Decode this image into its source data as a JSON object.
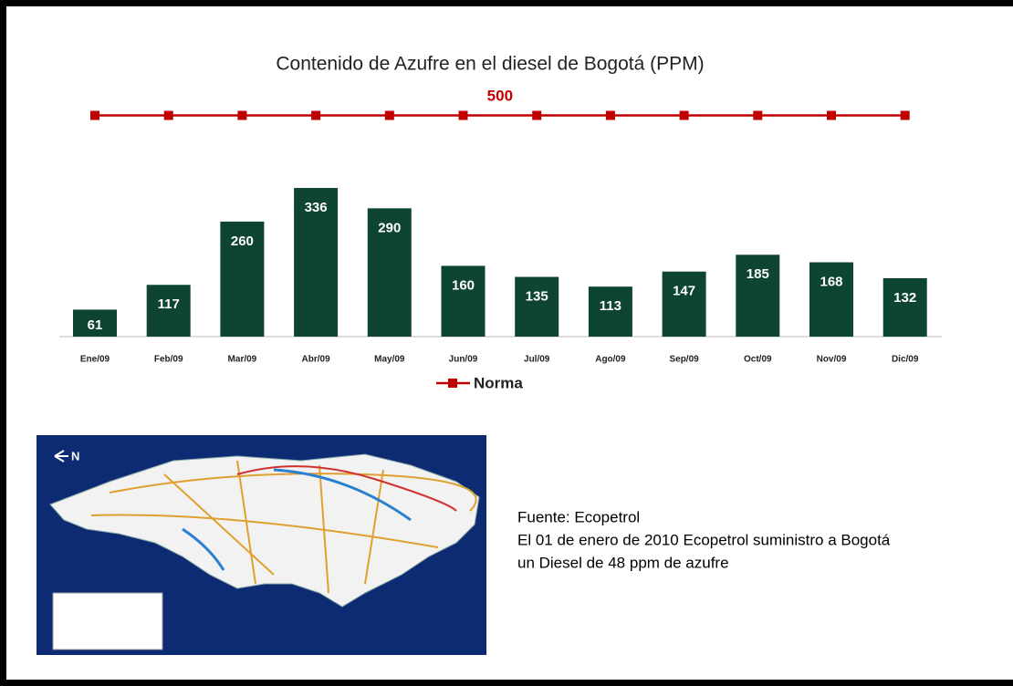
{
  "chart_data": {
    "type": "bar",
    "title": "Contenido de Azufre en el diesel de Bogotá (PPM)",
    "categories": [
      "Ene/09",
      "Feb/09",
      "Mar/09",
      "Abr/09",
      "May/09",
      "Jun/09",
      "Jul/09",
      "Ago/09",
      "Sep/09",
      "Oct/09",
      "Nov/09",
      "Dic/09"
    ],
    "values": [
      61,
      117,
      260,
      336,
      290,
      160,
      135,
      113,
      147,
      185,
      168,
      132
    ],
    "color": "#0e4434",
    "series": [
      {
        "type": "line",
        "name": "Norma",
        "color": "#c00000",
        "values": [
          500,
          500,
          500,
          500,
          500,
          500,
          500,
          500,
          500,
          500,
          500,
          500
        ]
      }
    ]
  },
  "map": {
    "north": "N"
  },
  "note": {
    "lines": [
      "Fuente: Ecopetrol",
      "El 01 de enero de 2010 Ecopetrol suministro a Bogotá",
      "un Diesel de 48 ppm de azufre"
    ]
  }
}
